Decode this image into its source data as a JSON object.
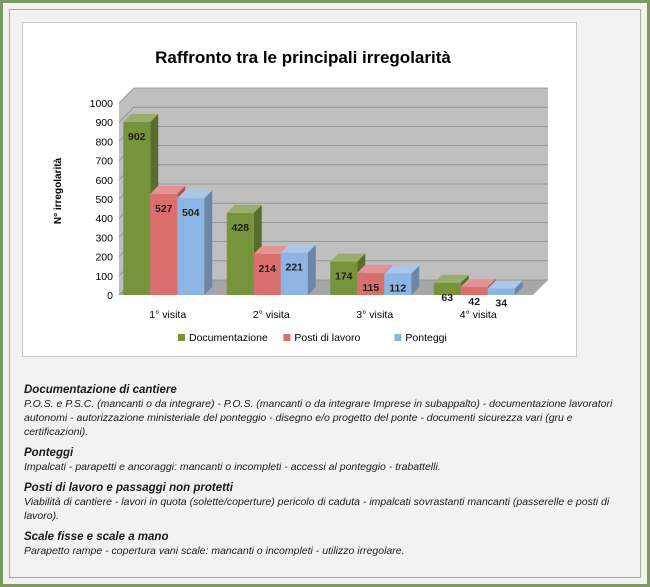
{
  "chart_data": {
    "type": "bar",
    "title": "Raffronto tra le principali irregolarità",
    "ylabel": "N° irregolarità",
    "xlabel": "",
    "ylim": [
      0,
      1000
    ],
    "yticks": [
      "0",
      "100",
      "200",
      "300",
      "400",
      "500",
      "600",
      "700",
      "800",
      "900",
      "1000"
    ],
    "categories": [
      "1° visita",
      "2° visita",
      "3° visita",
      "4° visita"
    ],
    "series": [
      {
        "name": "Documentazione",
        "values": [
          902,
          428,
          174,
          63
        ],
        "color": "#77933c"
      },
      {
        "name": "Posti di lavoro",
        "values": [
          527,
          214,
          115,
          42
        ],
        "color": "#d9706e"
      },
      {
        "name": "Ponteggi",
        "values": [
          504,
          221,
          112,
          34
        ],
        "color": "#8db4e2"
      }
    ],
    "legend_position": "bottom",
    "grid": true,
    "style": "3d-clustered"
  },
  "notes": [
    {
      "heading": "Documentazione di cantiere",
      "text": "P.O.S. e P.S.C. (mancanti o da integrare) - P.O.S. (mancanti o da integrare Imprese in subappalto) - documentazione lavoratori autonomi - autorizzazione ministeriale del ponteggio - disegno e/o progetto del ponte - documenti sicurezza vari (gru e certificazioni)."
    },
    {
      "heading": "Ponteggi",
      "text": "Impalcati  - parapetti e ancoraggi: mancanti o incompleti - accessi al ponteggio - trabattelli."
    },
    {
      "heading": "Posti di lavoro e passaggi non protetti",
      "text": "Viabilità di cantiere - lavori in quota (solette/coperture) pericolo di caduta - impalcati sovrastanti mancanti (passerelle e posti di lavoro)."
    },
    {
      "heading": "Scale fisse e scale a mano",
      "text": "Parapetto rampe - copertura vani scale: mancanti o incompleti - utilizzo irregolare."
    }
  ]
}
